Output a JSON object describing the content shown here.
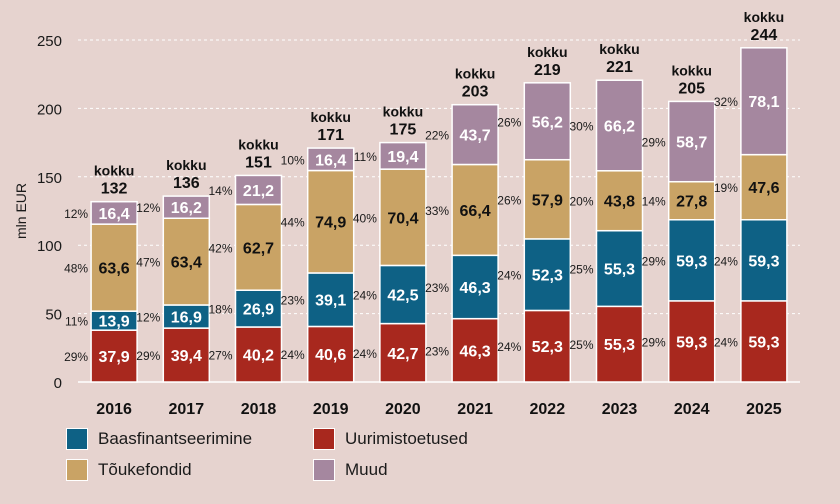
{
  "chart_data": {
    "type": "bar",
    "stacked": true,
    "title": "",
    "xlabel": "",
    "ylabel": "mln EUR",
    "ylim": [
      0,
      250
    ],
    "yticks": [
      0,
      50,
      100,
      150,
      200,
      250
    ],
    "grid": true,
    "legend_position": "bottom-left",
    "total_prefix": "kokku",
    "categories": [
      "2016",
      "2017",
      "2018",
      "2019",
      "2020",
      "2021",
      "2022",
      "2023",
      "2024",
      "2025"
    ],
    "totals": [
      132,
      136,
      151,
      171,
      175,
      203,
      219,
      221,
      205,
      244
    ],
    "series": [
      {
        "name": "Uurimistoetused",
        "color": "#a8281e",
        "values": [
          37.9,
          39.4,
          40.2,
          40.6,
          42.7,
          46.3,
          52.3,
          55.3,
          59.3,
          59.3
        ],
        "labels": [
          "37,9",
          "39,4",
          "40,2",
          "40,6",
          "42,7",
          "46,3",
          "52,3",
          "55,3",
          "59,3",
          "59,3"
        ],
        "shares": [
          "29%",
          "29%",
          "27%",
          "24%",
          "24%",
          "23%",
          "24%",
          "25%",
          "29%",
          "24%"
        ]
      },
      {
        "name": "Baasfinantseerimine",
        "color": "#0e6185",
        "values": [
          13.9,
          16.9,
          26.9,
          39.1,
          42.5,
          46.3,
          52.3,
          55.3,
          59.3,
          59.3
        ],
        "labels": [
          "13,9",
          "16,9",
          "26,9",
          "39,1",
          "42,5",
          "46,3",
          "52,3",
          "55,3",
          "59,3",
          "59,3"
        ],
        "shares": [
          "11%",
          "12%",
          "18%",
          "23%",
          "24%",
          "23%",
          "24%",
          "25%",
          "29%",
          "24%"
        ]
      },
      {
        "name": "Tõukefondid",
        "color": "#c9a365",
        "values": [
          63.6,
          63.4,
          62.7,
          74.9,
          70.4,
          66.4,
          57.9,
          43.8,
          27.8,
          47.6
        ],
        "labels": [
          "63,6",
          "63,4",
          "62,7",
          "74,9",
          "70,4",
          "66,4",
          "57,9",
          "43,8",
          "27,8",
          "47,6"
        ],
        "shares": [
          "48%",
          "47%",
          "42%",
          "44%",
          "40%",
          "33%",
          "26%",
          "20%",
          "14%",
          "19%"
        ]
      },
      {
        "name": "Muud",
        "color": "#a5879f",
        "values": [
          16.4,
          16.2,
          21.2,
          16.4,
          19.4,
          43.7,
          56.2,
          66.2,
          58.7,
          78.1
        ],
        "labels": [
          "16,4",
          "16,2",
          "21,2",
          "16,4",
          "19,4",
          "43,7",
          "56,2",
          "66,2",
          "58,7",
          "78,1"
        ],
        "shares": [
          "12%",
          "12%",
          "14%",
          "10%",
          "11%",
          "22%",
          "26%",
          "30%",
          "29%",
          "32%"
        ]
      }
    ]
  },
  "legend": [
    {
      "label": "Baasfinantseerimine",
      "color": "#0e6185"
    },
    {
      "label": "Uurimistoetused",
      "color": "#a8281e"
    },
    {
      "label": "Tõukefondid",
      "color": "#c9a365"
    },
    {
      "label": "Muud",
      "color": "#a5879f"
    }
  ]
}
